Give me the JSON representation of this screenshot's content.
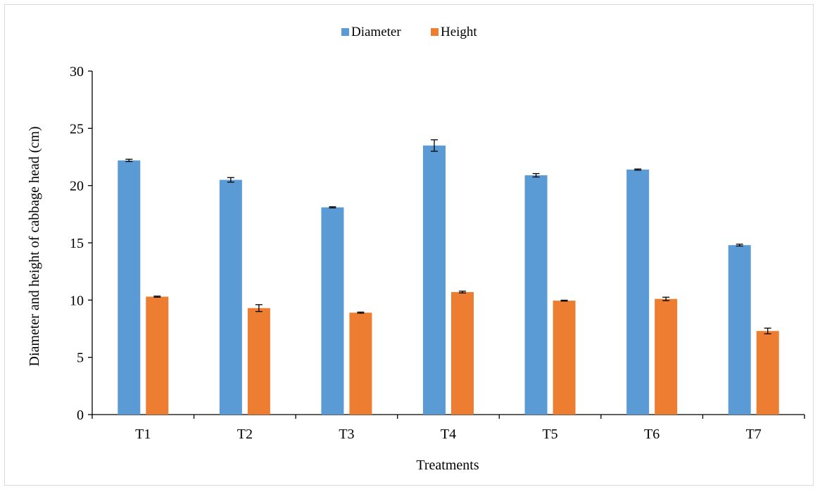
{
  "chart_data": {
    "type": "bar",
    "title": "",
    "xlabel": "Treatments",
    "ylabel": "Diameter and height of cabbage head (cm)",
    "categories": [
      "T1",
      "T2",
      "T3",
      "T4",
      "T5",
      "T6",
      "T7"
    ],
    "ylim": [
      0,
      30
    ],
    "yticks": [
      0,
      5,
      10,
      15,
      20,
      25,
      30
    ],
    "grid": false,
    "legend_position": "top-center",
    "series": [
      {
        "name": "Diameter",
        "color": "#5b9bd5",
        "values": [
          22.2,
          20.5,
          18.1,
          23.5,
          20.9,
          21.4,
          14.8
        ],
        "errors": [
          0.1,
          0.2,
          0.05,
          0.5,
          0.15,
          0.05,
          0.08
        ]
      },
      {
        "name": "Height",
        "color": "#ed7d31",
        "values": [
          10.3,
          9.3,
          8.9,
          10.7,
          9.95,
          10.1,
          7.3
        ],
        "errors": [
          0.05,
          0.3,
          0.05,
          0.08,
          0.04,
          0.15,
          0.25
        ]
      }
    ]
  }
}
